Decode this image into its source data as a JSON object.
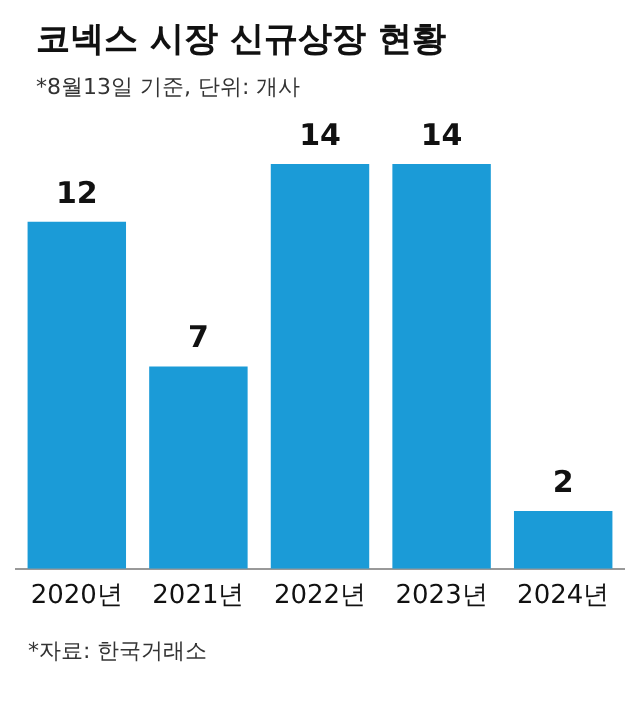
{
  "chart_data": {
    "type": "bar",
    "title": "코넥스 시장 신규상장 현황",
    "subtitle": "*8월13일 기준, 단위: 개사",
    "categories": [
      "2020년",
      "2021년",
      "2022년",
      "2023년",
      "2024년"
    ],
    "values": [
      12,
      7,
      14,
      14,
      2
    ],
    "color": "#1b9bd7",
    "data_labels": true,
    "grid": false,
    "legend": false,
    "annotations": [
      "*자료: 한국거래소"
    ]
  }
}
